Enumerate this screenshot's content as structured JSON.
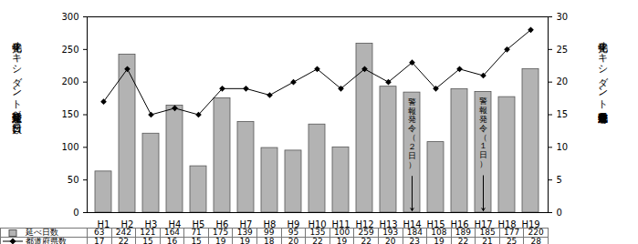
{
  "chart_data": {
    "type": "bar",
    "categories": [
      "H1",
      "H2",
      "H3",
      "H4",
      "H5",
      "H6",
      "H7",
      "H8",
      "H9",
      "H10",
      "H11",
      "H12",
      "H13",
      "H14",
      "H15",
      "H16",
      "H17",
      "H18",
      "H19"
    ],
    "series": [
      {
        "name": "延べ日数",
        "type": "bar",
        "color": "#b3b3b3",
        "values": [
          63,
          242,
          121,
          164,
          71,
          175,
          139,
          99,
          95,
          135,
          100,
          259,
          193,
          184,
          108,
          189,
          185,
          177,
          220
        ]
      },
      {
        "name": "都道府県数",
        "type": "line",
        "axis": "y2",
        "color": "#000000",
        "marker": "diamond",
        "values": [
          17,
          22,
          15,
          16,
          15,
          19,
          19,
          18,
          20,
          22,
          19,
          22,
          20,
          23,
          19,
          22,
          21,
          25,
          28
        ]
      }
    ],
    "ylabel": "光化学オキシダント注意報発令延べ日数（日）",
    "y2label": "光化学オキシダント注意報発令都道府県数",
    "ylim": [
      0,
      300
    ],
    "yticks": [
      0,
      50,
      100,
      150,
      200,
      250,
      300
    ],
    "y2lim": [
      0,
      30
    ],
    "y2ticks": [
      0,
      5,
      10,
      15,
      20,
      25,
      30
    ],
    "annotations": [
      {
        "category": "H14",
        "text": "警報発令（２日）"
      },
      {
        "category": "H17",
        "text": "警報発令（１日）"
      }
    ],
    "grid": false
  }
}
